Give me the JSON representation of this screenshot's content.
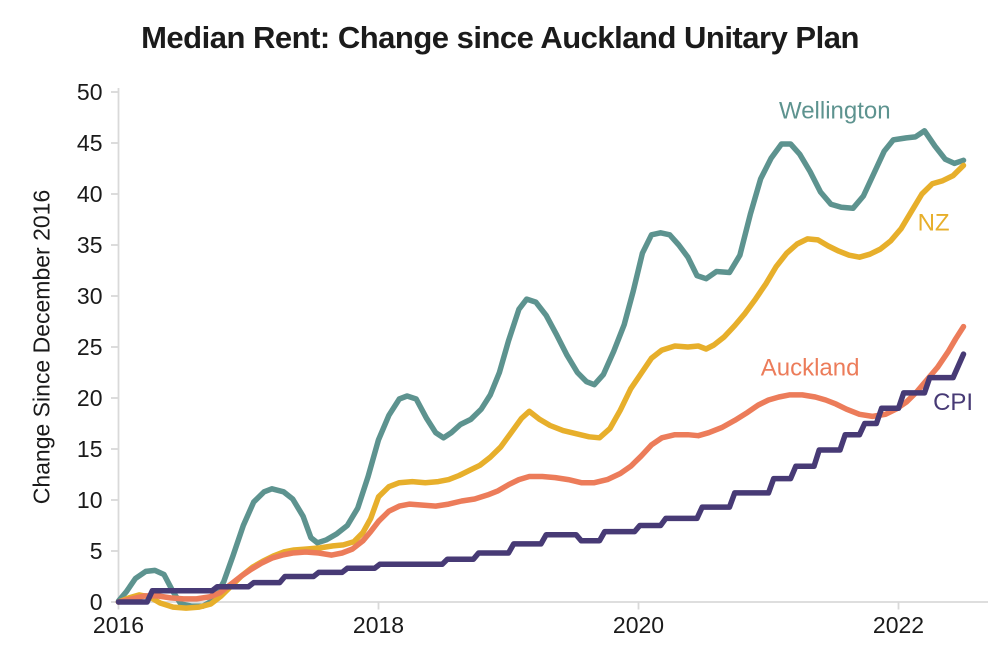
{
  "chart_data": {
    "type": "line",
    "title": "Median Rent: Change since Auckland Unitary Plan",
    "ylabel": "Change Since December 2016",
    "x_tick_labels": [
      "2016",
      "2018",
      "2020",
      "2022"
    ],
    "x_tick_values": [
      2016,
      2018,
      2020,
      2022
    ],
    "y_tick_values": [
      0,
      5,
      10,
      15,
      20,
      25,
      30,
      35,
      40,
      45,
      50
    ],
    "xlim": [
      2016,
      2022.55
    ],
    "ylim": [
      0,
      50
    ],
    "grid": false,
    "legend_position": "inline-labels",
    "colors": {
      "axis": "#d9d9d9",
      "text": "#1a1a1a"
    },
    "series": [
      {
        "name": "Wellington",
        "color": "#5d938f",
        "label_pos": [
          2021.51,
          48.2
        ],
        "points": [
          [
            2016.0,
            0.1
          ],
          [
            2016.06,
            1.0
          ],
          [
            2016.13,
            2.3
          ],
          [
            2016.21,
            3.0
          ],
          [
            2016.28,
            3.1
          ],
          [
            2016.35,
            2.7
          ],
          [
            2016.42,
            1.0
          ],
          [
            2016.48,
            -0.2
          ],
          [
            2016.56,
            -0.4
          ],
          [
            2016.65,
            -0.4
          ],
          [
            2016.73,
            0.2
          ],
          [
            2016.81,
            2.0
          ],
          [
            2016.88,
            4.5
          ],
          [
            2016.96,
            7.5
          ],
          [
            2017.04,
            9.8
          ],
          [
            2017.12,
            10.8
          ],
          [
            2017.18,
            11.1
          ],
          [
            2017.27,
            10.8
          ],
          [
            2017.34,
            10.1
          ],
          [
            2017.42,
            8.4
          ],
          [
            2017.48,
            6.3
          ],
          [
            2017.53,
            5.8
          ],
          [
            2017.6,
            6.1
          ],
          [
            2017.68,
            6.7
          ],
          [
            2017.76,
            7.5
          ],
          [
            2017.84,
            9.2
          ],
          [
            2017.92,
            12.3
          ],
          [
            2018.0,
            15.9
          ],
          [
            2018.08,
            18.3
          ],
          [
            2018.16,
            19.9
          ],
          [
            2018.22,
            20.2
          ],
          [
            2018.29,
            19.9
          ],
          [
            2018.37,
            18.0
          ],
          [
            2018.44,
            16.6
          ],
          [
            2018.5,
            16.1
          ],
          [
            2018.56,
            16.6
          ],
          [
            2018.63,
            17.4
          ],
          [
            2018.71,
            17.9
          ],
          [
            2018.79,
            18.9
          ],
          [
            2018.86,
            20.3
          ],
          [
            2018.93,
            22.5
          ],
          [
            2019.0,
            25.6
          ],
          [
            2019.08,
            28.7
          ],
          [
            2019.14,
            29.7
          ],
          [
            2019.21,
            29.4
          ],
          [
            2019.29,
            28.1
          ],
          [
            2019.37,
            26.2
          ],
          [
            2019.45,
            24.2
          ],
          [
            2019.53,
            22.5
          ],
          [
            2019.6,
            21.6
          ],
          [
            2019.66,
            21.3
          ],
          [
            2019.73,
            22.3
          ],
          [
            2019.81,
            24.6
          ],
          [
            2019.89,
            27.2
          ],
          [
            2019.96,
            30.5
          ],
          [
            2020.03,
            34.2
          ],
          [
            2020.1,
            36.0
          ],
          [
            2020.17,
            36.2
          ],
          [
            2020.24,
            36.0
          ],
          [
            2020.31,
            35.0
          ],
          [
            2020.38,
            33.8
          ],
          [
            2020.45,
            32.0
          ],
          [
            2020.52,
            31.7
          ],
          [
            2020.6,
            32.4
          ],
          [
            2020.7,
            32.3
          ],
          [
            2020.78,
            34.0
          ],
          [
            2020.86,
            38.0
          ],
          [
            2020.94,
            41.5
          ],
          [
            2021.02,
            43.5
          ],
          [
            2021.1,
            44.9
          ],
          [
            2021.17,
            44.9
          ],
          [
            2021.24,
            43.9
          ],
          [
            2021.32,
            42.2
          ],
          [
            2021.4,
            40.2
          ],
          [
            2021.48,
            39.0
          ],
          [
            2021.56,
            38.7
          ],
          [
            2021.65,
            38.6
          ],
          [
            2021.73,
            39.8
          ],
          [
            2021.81,
            42.0
          ],
          [
            2021.89,
            44.2
          ],
          [
            2021.96,
            45.3
          ],
          [
            2022.06,
            45.5
          ],
          [
            2022.13,
            45.6
          ],
          [
            2022.2,
            46.2
          ],
          [
            2022.28,
            44.7
          ],
          [
            2022.36,
            43.4
          ],
          [
            2022.43,
            43.0
          ],
          [
            2022.5,
            43.3
          ]
        ]
      },
      {
        "name": "NZ",
        "color": "#e7af2b",
        "label_pos": [
          2022.27,
          37.2
        ],
        "points": [
          [
            2016.0,
            0.0
          ],
          [
            2016.08,
            0.4
          ],
          [
            2016.16,
            0.7
          ],
          [
            2016.24,
            0.5
          ],
          [
            2016.32,
            -0.1
          ],
          [
            2016.42,
            -0.5
          ],
          [
            2016.52,
            -0.6
          ],
          [
            2016.62,
            -0.5
          ],
          [
            2016.71,
            -0.2
          ],
          [
            2016.79,
            0.6
          ],
          [
            2016.87,
            1.6
          ],
          [
            2016.95,
            2.6
          ],
          [
            2017.03,
            3.4
          ],
          [
            2017.11,
            4.0
          ],
          [
            2017.19,
            4.5
          ],
          [
            2017.27,
            4.9
          ],
          [
            2017.35,
            5.1
          ],
          [
            2017.45,
            5.2
          ],
          [
            2017.55,
            5.3
          ],
          [
            2017.65,
            5.5
          ],
          [
            2017.73,
            5.6
          ],
          [
            2017.81,
            5.9
          ],
          [
            2017.88,
            6.8
          ],
          [
            2017.94,
            8.2
          ],
          [
            2018.0,
            10.3
          ],
          [
            2018.08,
            11.3
          ],
          [
            2018.16,
            11.7
          ],
          [
            2018.26,
            11.8
          ],
          [
            2018.36,
            11.7
          ],
          [
            2018.46,
            11.8
          ],
          [
            2018.54,
            12.0
          ],
          [
            2018.62,
            12.4
          ],
          [
            2018.7,
            12.9
          ],
          [
            2018.78,
            13.4
          ],
          [
            2018.86,
            14.2
          ],
          [
            2018.94,
            15.2
          ],
          [
            2019.02,
            16.6
          ],
          [
            2019.1,
            18.0
          ],
          [
            2019.16,
            18.7
          ],
          [
            2019.24,
            17.9
          ],
          [
            2019.32,
            17.3
          ],
          [
            2019.42,
            16.8
          ],
          [
            2019.52,
            16.5
          ],
          [
            2019.62,
            16.2
          ],
          [
            2019.7,
            16.1
          ],
          [
            2019.78,
            17.0
          ],
          [
            2019.86,
            18.8
          ],
          [
            2019.94,
            20.9
          ],
          [
            2020.02,
            22.4
          ],
          [
            2020.1,
            23.9
          ],
          [
            2020.18,
            24.7
          ],
          [
            2020.28,
            25.1
          ],
          [
            2020.38,
            25.0
          ],
          [
            2020.46,
            25.1
          ],
          [
            2020.52,
            24.8
          ],
          [
            2020.58,
            25.2
          ],
          [
            2020.66,
            26.0
          ],
          [
            2020.74,
            27.1
          ],
          [
            2020.82,
            28.3
          ],
          [
            2020.9,
            29.7
          ],
          [
            2020.98,
            31.2
          ],
          [
            2021.06,
            32.9
          ],
          [
            2021.14,
            34.2
          ],
          [
            2021.22,
            35.1
          ],
          [
            2021.3,
            35.6
          ],
          [
            2021.38,
            35.5
          ],
          [
            2021.46,
            34.9
          ],
          [
            2021.54,
            34.4
          ],
          [
            2021.62,
            34.0
          ],
          [
            2021.7,
            33.8
          ],
          [
            2021.78,
            34.1
          ],
          [
            2021.86,
            34.6
          ],
          [
            2021.94,
            35.4
          ],
          [
            2022.02,
            36.6
          ],
          [
            2022.1,
            38.3
          ],
          [
            2022.18,
            40.0
          ],
          [
            2022.26,
            41.0
          ],
          [
            2022.34,
            41.3
          ],
          [
            2022.42,
            41.8
          ],
          [
            2022.5,
            42.8
          ]
        ]
      },
      {
        "name": "Auckland",
        "color": "#ec7c5a",
        "label_pos": [
          2021.32,
          23.0
        ],
        "points": [
          [
            2016.0,
            0.0
          ],
          [
            2016.1,
            0.3
          ],
          [
            2016.2,
            0.6
          ],
          [
            2016.3,
            0.6
          ],
          [
            2016.4,
            0.4
          ],
          [
            2016.5,
            0.3
          ],
          [
            2016.6,
            0.3
          ],
          [
            2016.7,
            0.5
          ],
          [
            2016.78,
            0.9
          ],
          [
            2016.86,
            1.7
          ],
          [
            2016.94,
            2.5
          ],
          [
            2017.02,
            3.2
          ],
          [
            2017.1,
            3.8
          ],
          [
            2017.18,
            4.3
          ],
          [
            2017.26,
            4.6
          ],
          [
            2017.34,
            4.8
          ],
          [
            2017.44,
            4.9
          ],
          [
            2017.54,
            4.8
          ],
          [
            2017.64,
            4.6
          ],
          [
            2017.72,
            4.8
          ],
          [
            2017.8,
            5.2
          ],
          [
            2017.88,
            6.0
          ],
          [
            2017.94,
            6.9
          ],
          [
            2018.0,
            7.9
          ],
          [
            2018.08,
            8.9
          ],
          [
            2018.16,
            9.4
          ],
          [
            2018.24,
            9.6
          ],
          [
            2018.34,
            9.5
          ],
          [
            2018.44,
            9.4
          ],
          [
            2018.54,
            9.6
          ],
          [
            2018.64,
            9.9
          ],
          [
            2018.74,
            10.1
          ],
          [
            2018.84,
            10.5
          ],
          [
            2018.92,
            10.9
          ],
          [
            2019.0,
            11.5
          ],
          [
            2019.08,
            12.0
          ],
          [
            2019.16,
            12.3
          ],
          [
            2019.26,
            12.3
          ],
          [
            2019.36,
            12.2
          ],
          [
            2019.46,
            12.0
          ],
          [
            2019.56,
            11.7
          ],
          [
            2019.66,
            11.7
          ],
          [
            2019.76,
            12.0
          ],
          [
            2019.86,
            12.6
          ],
          [
            2019.94,
            13.3
          ],
          [
            2020.02,
            14.3
          ],
          [
            2020.1,
            15.4
          ],
          [
            2020.18,
            16.1
          ],
          [
            2020.28,
            16.4
          ],
          [
            2020.38,
            16.4
          ],
          [
            2020.46,
            16.3
          ],
          [
            2020.54,
            16.6
          ],
          [
            2020.64,
            17.1
          ],
          [
            2020.74,
            17.8
          ],
          [
            2020.84,
            18.6
          ],
          [
            2020.92,
            19.3
          ],
          [
            2021.0,
            19.8
          ],
          [
            2021.08,
            20.1
          ],
          [
            2021.16,
            20.3
          ],
          [
            2021.26,
            20.3
          ],
          [
            2021.36,
            20.1
          ],
          [
            2021.44,
            19.8
          ],
          [
            2021.52,
            19.4
          ],
          [
            2021.6,
            18.9
          ],
          [
            2021.7,
            18.4
          ],
          [
            2021.8,
            18.2
          ],
          [
            2021.9,
            18.4
          ],
          [
            2021.98,
            18.9
          ],
          [
            2022.06,
            19.6
          ],
          [
            2022.14,
            20.6
          ],
          [
            2022.22,
            21.8
          ],
          [
            2022.3,
            23.0
          ],
          [
            2022.38,
            24.5
          ],
          [
            2022.44,
            25.8
          ],
          [
            2022.5,
            27.0
          ]
        ]
      },
      {
        "name": "CPI",
        "color": "#473a75",
        "label_pos": [
          2022.42,
          19.6
        ],
        "points": [
          [
            2016.0,
            0.0
          ],
          [
            2016.22,
            0.0
          ],
          [
            2016.26,
            1.1
          ],
          [
            2016.72,
            1.1
          ],
          [
            2016.76,
            1.5
          ],
          [
            2017.0,
            1.5
          ],
          [
            2017.04,
            1.9
          ],
          [
            2017.24,
            1.9
          ],
          [
            2017.28,
            2.5
          ],
          [
            2017.5,
            2.5
          ],
          [
            2017.54,
            2.9
          ],
          [
            2017.72,
            2.9
          ],
          [
            2017.76,
            3.3
          ],
          [
            2017.97,
            3.3
          ],
          [
            2018.01,
            3.7
          ],
          [
            2018.49,
            3.7
          ],
          [
            2018.53,
            4.2
          ],
          [
            2018.73,
            4.2
          ],
          [
            2018.77,
            4.8
          ],
          [
            2019.0,
            4.8
          ],
          [
            2019.04,
            5.7
          ],
          [
            2019.25,
            5.7
          ],
          [
            2019.29,
            6.6
          ],
          [
            2019.52,
            6.6
          ],
          [
            2019.56,
            6.0
          ],
          [
            2019.7,
            6.0
          ],
          [
            2019.74,
            6.9
          ],
          [
            2019.97,
            6.9
          ],
          [
            2020.01,
            7.5
          ],
          [
            2020.17,
            7.5
          ],
          [
            2020.21,
            8.2
          ],
          [
            2020.45,
            8.2
          ],
          [
            2020.49,
            9.3
          ],
          [
            2020.7,
            9.3
          ],
          [
            2020.74,
            10.7
          ],
          [
            2021.0,
            10.7
          ],
          [
            2021.04,
            12.1
          ],
          [
            2021.17,
            12.1
          ],
          [
            2021.21,
            13.3
          ],
          [
            2021.35,
            13.3
          ],
          [
            2021.39,
            14.9
          ],
          [
            2021.55,
            14.9
          ],
          [
            2021.59,
            16.4
          ],
          [
            2021.7,
            16.4
          ],
          [
            2021.74,
            17.5
          ],
          [
            2021.83,
            17.5
          ],
          [
            2021.87,
            19.0
          ],
          [
            2022.0,
            19.0
          ],
          [
            2022.04,
            20.5
          ],
          [
            2022.2,
            20.5
          ],
          [
            2022.24,
            22.0
          ],
          [
            2022.42,
            22.0
          ],
          [
            2022.5,
            24.3
          ]
        ]
      }
    ]
  }
}
